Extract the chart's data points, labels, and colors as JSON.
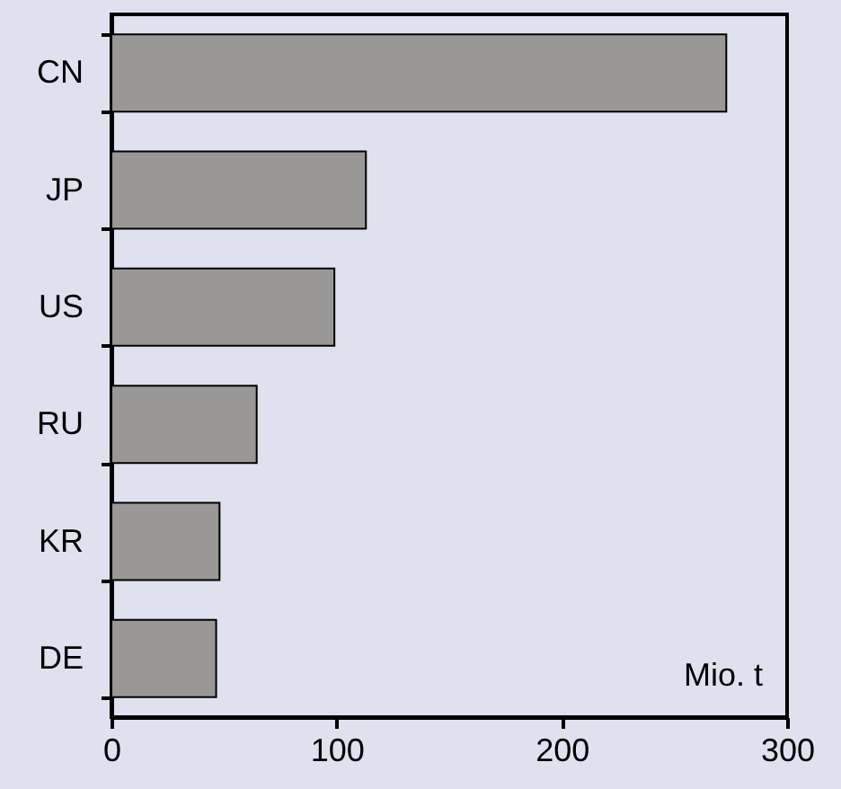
{
  "chart_data": {
    "type": "bar",
    "orientation": "horizontal",
    "xlabel": "Mio. t",
    "categories": [
      "CN",
      "JP",
      "US",
      "RU",
      "KR",
      "DE"
    ],
    "values": [
      273,
      113,
      99,
      64.5,
      48,
      46.5
    ],
    "color": "#999896",
    "xlim": [
      0,
      300
    ],
    "xticks": [
      0,
      100,
      200,
      300
    ],
    "grid": false
  }
}
